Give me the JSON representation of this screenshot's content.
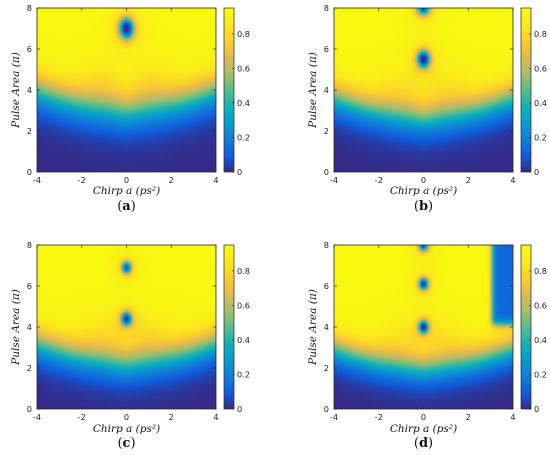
{
  "chart_data": [
    {
      "type": "heatmap",
      "panel_label": "(a)",
      "xlabel": "Chirp a (ps²)",
      "ylabel": "Pulse Area (π)",
      "xlim": [
        -4,
        4
      ],
      "ylim": [
        0,
        8
      ],
      "xticks": [
        -4,
        -2,
        0,
        2,
        4
      ],
      "yticks": [
        0,
        2,
        4,
        6,
        8
      ],
      "clim": [
        0,
        0.95
      ],
      "colorbar_ticks": [
        0,
        0.2,
        0.4,
        0.6,
        0.8
      ],
      "colormap": "parula",
      "features": {
        "rise_center": 3.1,
        "rise_width": 0.55,
        "chirp_curvature": 0.11,
        "dips": [
          {
            "x": 0,
            "y": 7.0,
            "depth": 0.93,
            "wx": 0.32,
            "wy": 0.5
          }
        ],
        "chirp_band": false
      }
    },
    {
      "type": "heatmap",
      "panel_label": "(b)",
      "xlabel": "Chirp a (ps²)",
      "ylabel": "Pulse Area (π)",
      "xlim": [
        -4,
        4
      ],
      "ylim": [
        0,
        8
      ],
      "xticks": [
        -4,
        -2,
        0,
        2,
        4
      ],
      "yticks": [
        0,
        2,
        4,
        6,
        8
      ],
      "clim": [
        0,
        0.95
      ],
      "colorbar_ticks": [
        0,
        0.2,
        0.4,
        0.6,
        0.8
      ],
      "colormap": "parula",
      "features": {
        "rise_center": 2.75,
        "rise_width": 0.5,
        "chirp_curvature": 0.11,
        "dips": [
          {
            "x": 0,
            "y": 5.5,
            "depth": 0.93,
            "wx": 0.28,
            "wy": 0.42
          },
          {
            "x": 0,
            "y": 8.0,
            "depth": 0.75,
            "wx": 0.3,
            "wy": 0.35
          }
        ],
        "chirp_band": false
      }
    },
    {
      "type": "heatmap",
      "panel_label": "(c)",
      "xlabel": "Chirp a (ps²)",
      "ylabel": "Pulse Area (π)",
      "xlim": [
        -4,
        4
      ],
      "ylim": [
        0,
        8
      ],
      "xticks": [
        -4,
        -2,
        0,
        2,
        4
      ],
      "yticks": [
        0,
        2,
        4,
        6,
        8
      ],
      "clim": [
        0,
        0.95
      ],
      "colorbar_ticks": [
        0,
        0.2,
        0.4,
        0.6,
        0.8
      ],
      "colormap": "parula",
      "features": {
        "rise_center": 2.35,
        "rise_width": 0.5,
        "chirp_curvature": 0.1,
        "dips": [
          {
            "x": 0,
            "y": 4.4,
            "depth": 0.8,
            "wx": 0.24,
            "wy": 0.34
          },
          {
            "x": 0,
            "y": 6.9,
            "depth": 0.75,
            "wx": 0.22,
            "wy": 0.3
          }
        ],
        "chirp_band": false
      }
    },
    {
      "type": "heatmap",
      "panel_label": "(d)",
      "xlabel": "Chirp a (ps²)",
      "ylabel": "Pulse Area (π)",
      "xlim": [
        -4,
        4
      ],
      "ylim": [
        0,
        8
      ],
      "xticks": [
        -4,
        -2,
        0,
        2,
        4
      ],
      "yticks": [
        0,
        2,
        4,
        6,
        8
      ],
      "clim": [
        0,
        0.95
      ],
      "colorbar_ticks": [
        0,
        0.2,
        0.4,
        0.6,
        0.8
      ],
      "colormap": "parula",
      "features": {
        "rise_center": 2.1,
        "rise_width": 0.45,
        "chirp_curvature": 0.09,
        "dips": [
          {
            "x": 0,
            "y": 4.0,
            "depth": 0.85,
            "wx": 0.22,
            "wy": 0.32
          },
          {
            "x": 0,
            "y": 6.1,
            "depth": 0.82,
            "wx": 0.22,
            "wy": 0.3
          },
          {
            "x": 0,
            "y": 8.0,
            "depth": 0.8,
            "wx": 0.22,
            "wy": 0.3
          }
        ],
        "chirp_band": true,
        "band_x": 3.05,
        "band_y": 4.1,
        "band_value": 0.13
      }
    }
  ],
  "colors": {
    "background": "#ffffff",
    "axis": "#262626",
    "parula_low": "#352a87",
    "parula_high": "#f9fb0e"
  }
}
